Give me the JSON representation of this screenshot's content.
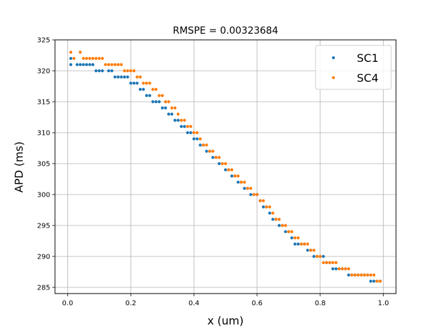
{
  "chart_data": {
    "type": "scatter",
    "title": "RMSPE = 0.00323684",
    "xlabel": "x (um)",
    "ylabel": "APD (ms)",
    "xlim": [
      -0.04,
      1.04
    ],
    "ylim": [
      284,
      325
    ],
    "xticks": [
      0.0,
      0.2,
      0.4,
      0.6,
      0.8,
      1.0
    ],
    "xtick_labels": [
      "0.0",
      "0.2",
      "0.4",
      "0.6",
      "0.8",
      "1.0"
    ],
    "yticks": [
      285,
      290,
      295,
      300,
      305,
      310,
      315,
      320,
      325
    ],
    "ytick_labels": [
      "285",
      "290",
      "295",
      "300",
      "305",
      "310",
      "315",
      "320",
      "325"
    ],
    "grid": true,
    "legend_position": "top-right",
    "series": [
      {
        "name": "SC1",
        "color": "#1f77b4",
        "x": [
          0.01,
          0.01,
          0.03,
          0.04,
          0.05,
          0.06,
          0.07,
          0.08,
          0.09,
          0.1,
          0.11,
          0.13,
          0.14,
          0.15,
          0.16,
          0.17,
          0.18,
          0.19,
          0.2,
          0.21,
          0.22,
          0.23,
          0.24,
          0.25,
          0.26,
          0.27,
          0.28,
          0.29,
          0.3,
          0.31,
          0.32,
          0.33,
          0.34,
          0.35,
          0.36,
          0.37,
          0.38,
          0.39,
          0.4,
          0.41,
          0.42,
          0.43,
          0.44,
          0.45,
          0.46,
          0.47,
          0.48,
          0.49,
          0.5,
          0.51,
          0.52,
          0.53,
          0.54,
          0.55,
          0.56,
          0.57,
          0.58,
          0.59,
          0.6,
          0.61,
          0.62,
          0.63,
          0.64,
          0.65,
          0.66,
          0.67,
          0.68,
          0.69,
          0.7,
          0.71,
          0.72,
          0.73,
          0.74,
          0.75,
          0.76,
          0.77,
          0.78,
          0.79,
          0.8,
          0.81,
          0.82,
          0.83,
          0.84,
          0.85,
          0.86,
          0.87,
          0.88,
          0.89,
          0.9,
          0.91,
          0.92,
          0.93,
          0.94,
          0.95,
          0.96,
          0.97,
          0.98,
          0.99
        ],
        "y": [
          321,
          322,
          321,
          321,
          321,
          321,
          321,
          321,
          320,
          320,
          320,
          320,
          320,
          319,
          319,
          319,
          319,
          319,
          318,
          318,
          318,
          317,
          317,
          316,
          316,
          315,
          315,
          315,
          314,
          314,
          313,
          313,
          312,
          312,
          311,
          311,
          310,
          310,
          309,
          309,
          308,
          308,
          307,
          307,
          306,
          306,
          305,
          305,
          304,
          304,
          303,
          303,
          302,
          302,
          301,
          301,
          300,
          300,
          300,
          299,
          298,
          298,
          297,
          296,
          296,
          295,
          295,
          294,
          294,
          293,
          292,
          292,
          292,
          292,
          291,
          291,
          290,
          290,
          290,
          290,
          289,
          289,
          288,
          288,
          288,
          288,
          288,
          287,
          287,
          287,
          287,
          287,
          287,
          287,
          286,
          286,
          286,
          286
        ]
      },
      {
        "name": "SC4",
        "color": "#ff7f0e",
        "x": [
          0.01,
          0.02,
          0.04,
          0.05,
          0.06,
          0.07,
          0.08,
          0.09,
          0.1,
          0.11,
          0.12,
          0.13,
          0.14,
          0.15,
          0.16,
          0.17,
          0.18,
          0.19,
          0.2,
          0.21,
          0.22,
          0.23,
          0.24,
          0.25,
          0.26,
          0.27,
          0.28,
          0.29,
          0.3,
          0.31,
          0.32,
          0.33,
          0.34,
          0.35,
          0.36,
          0.37,
          0.38,
          0.39,
          0.4,
          0.41,
          0.42,
          0.43,
          0.44,
          0.45,
          0.46,
          0.47,
          0.48,
          0.49,
          0.5,
          0.51,
          0.52,
          0.53,
          0.54,
          0.55,
          0.56,
          0.57,
          0.58,
          0.59,
          0.6,
          0.61,
          0.62,
          0.63,
          0.64,
          0.65,
          0.66,
          0.67,
          0.68,
          0.69,
          0.7,
          0.71,
          0.72,
          0.73,
          0.74,
          0.75,
          0.76,
          0.77,
          0.78,
          0.79,
          0.8,
          0.81,
          0.82,
          0.83,
          0.84,
          0.85,
          0.86,
          0.87,
          0.88,
          0.89,
          0.9,
          0.91,
          0.92,
          0.93,
          0.94,
          0.95,
          0.96,
          0.97,
          0.98,
          0.99
        ],
        "y": [
          323,
          322,
          323,
          322,
          322,
          322,
          322,
          322,
          322,
          322,
          321,
          321,
          321,
          321,
          321,
          321,
          320,
          320,
          320,
          320,
          319,
          319,
          318,
          318,
          318,
          317,
          317,
          316,
          316,
          315,
          315,
          314,
          314,
          313,
          312,
          312,
          311,
          311,
          310,
          310,
          309,
          308,
          308,
          307,
          307,
          306,
          306,
          305,
          305,
          304,
          304,
          303,
          303,
          302,
          302,
          301,
          301,
          300,
          300,
          299,
          299,
          298,
          298,
          297,
          296,
          296,
          295,
          295,
          294,
          294,
          293,
          293,
          292,
          292,
          292,
          291,
          291,
          290,
          290,
          289,
          289,
          289,
          289,
          289,
          288,
          288,
          288,
          288,
          287,
          287,
          287,
          287,
          287,
          287,
          287,
          287,
          286,
          286
        ]
      }
    ]
  }
}
